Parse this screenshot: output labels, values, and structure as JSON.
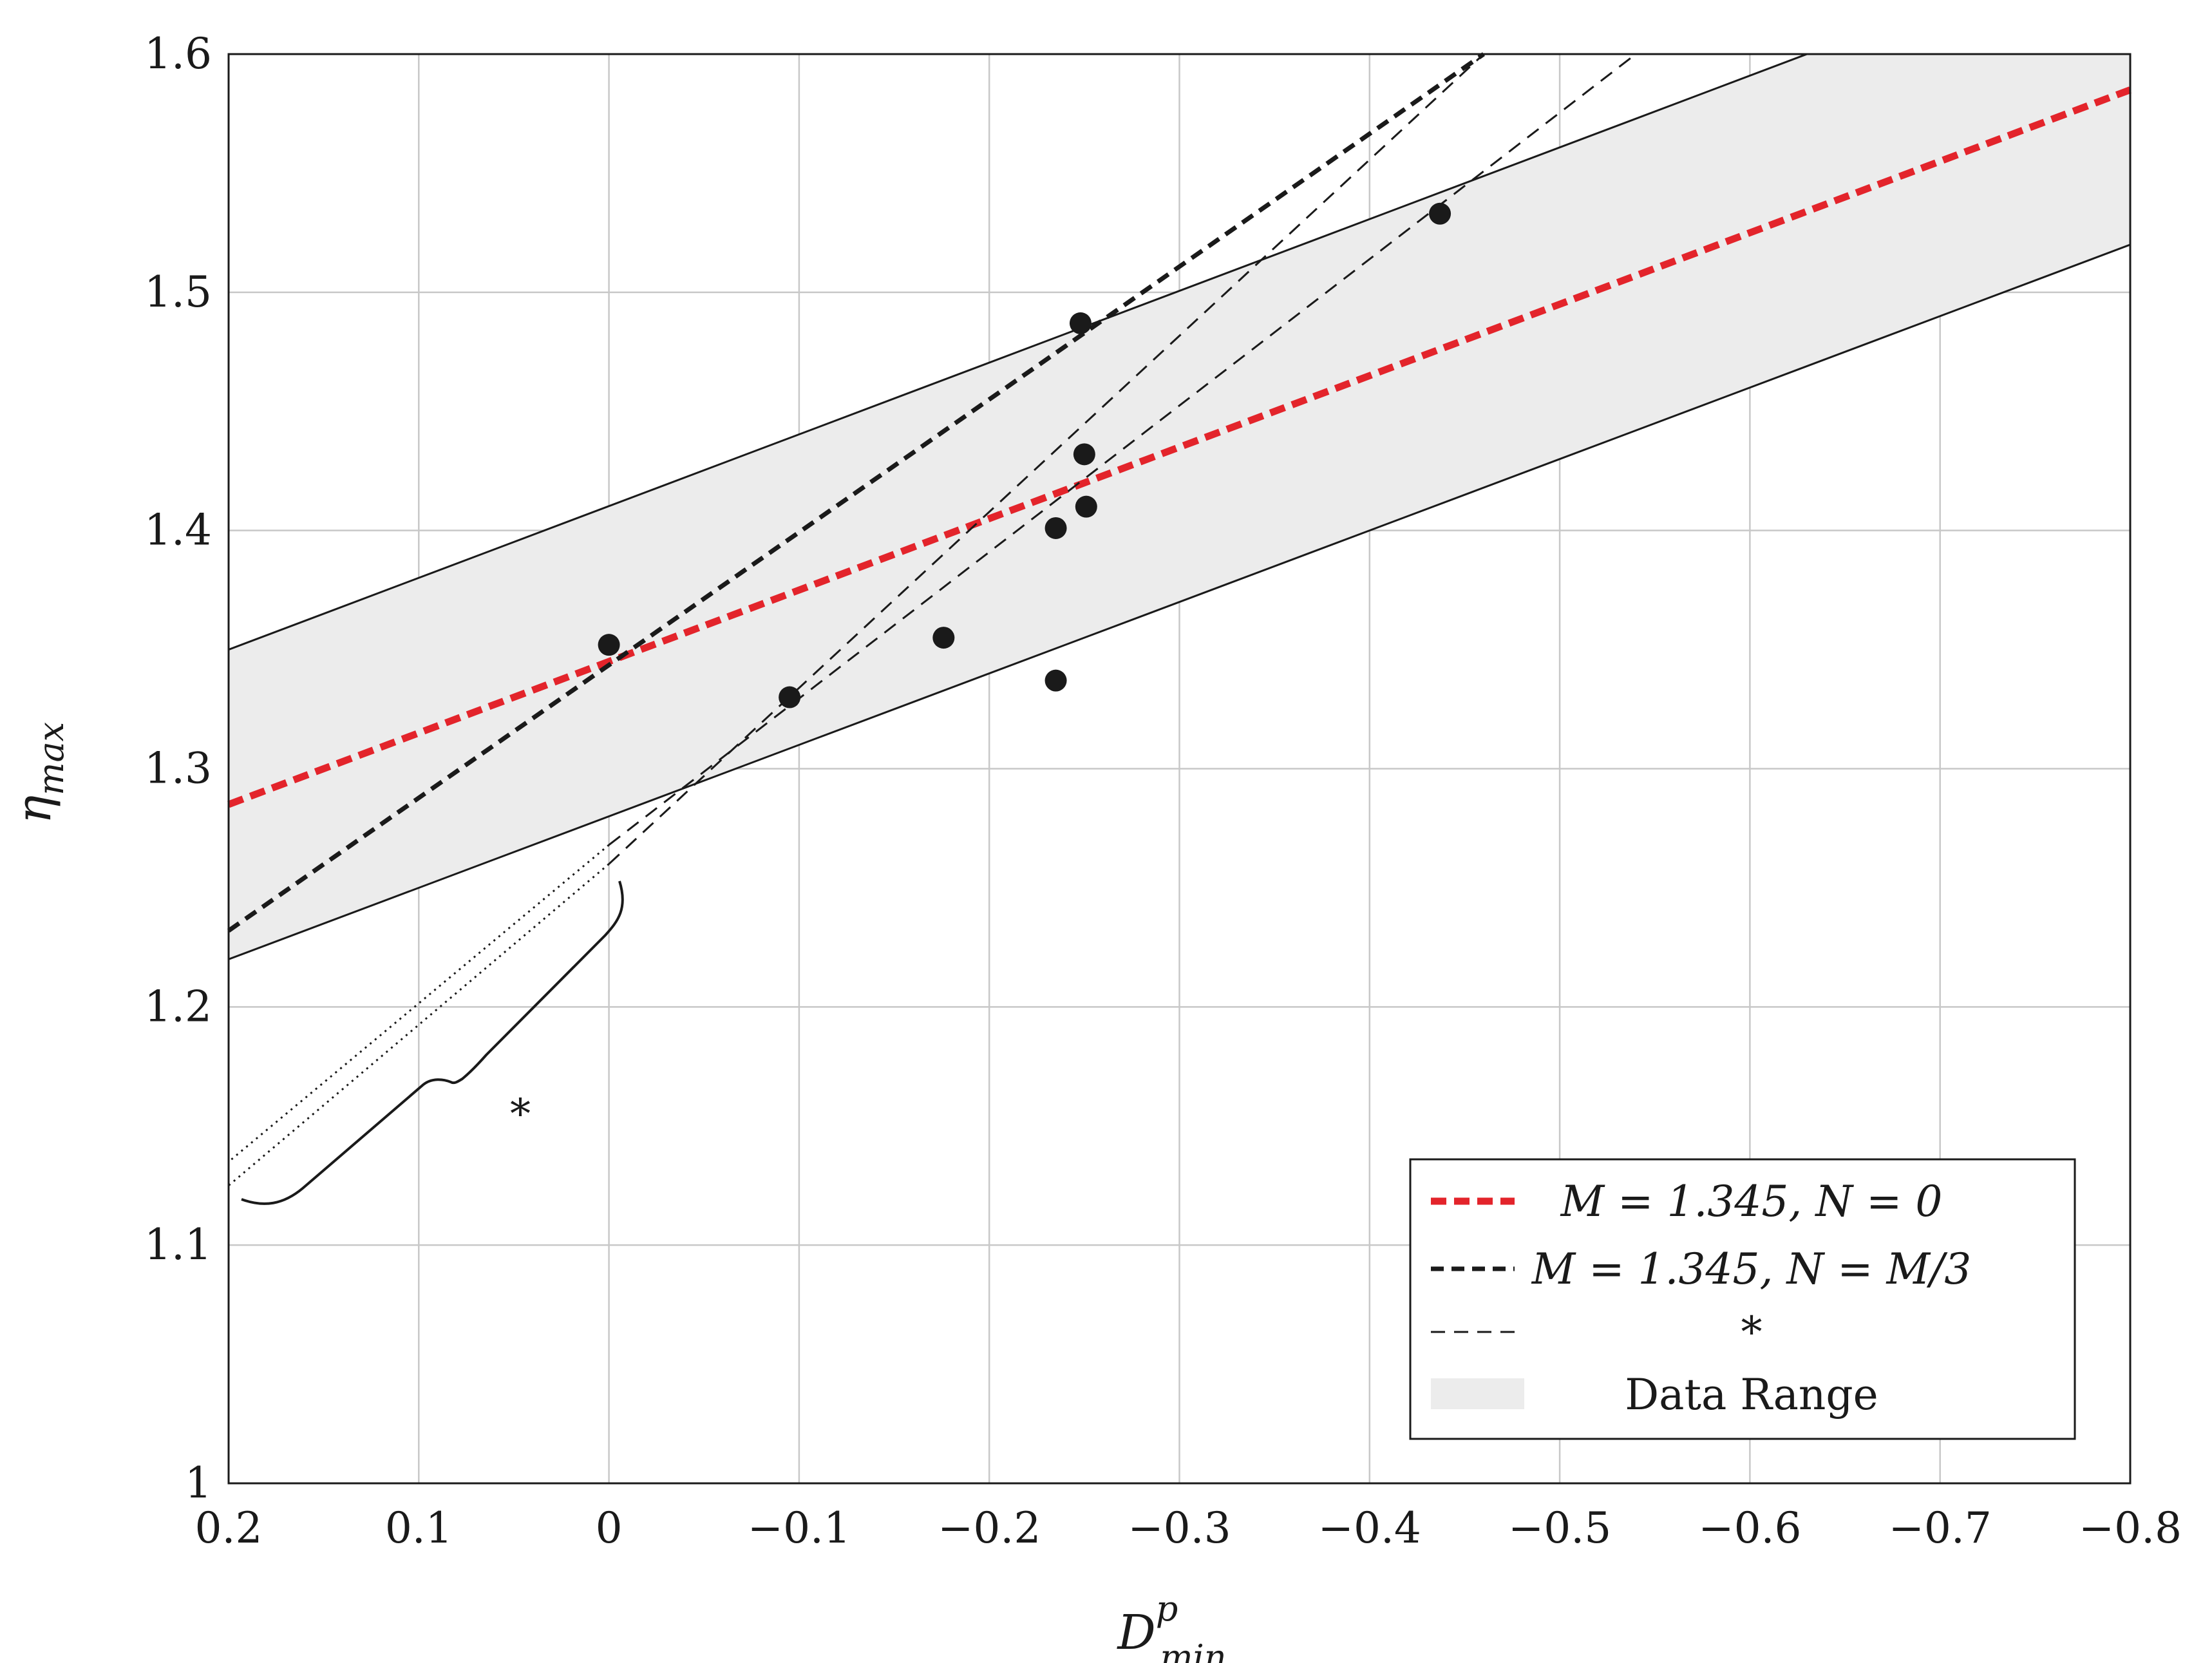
{
  "chart_data": {
    "type": "scatter",
    "title": "",
    "xlabel": {
      "main": "D",
      "sup": "p",
      "sub": "min"
    },
    "ylabel": {
      "main": "η",
      "sub": "max"
    },
    "xlim": [
      0.2,
      -0.8
    ],
    "ylim": [
      1.0,
      1.6
    ],
    "x_ticks": [
      0.2,
      0.1,
      0,
      -0.1,
      -0.2,
      -0.3,
      -0.4,
      -0.5,
      -0.6,
      -0.7,
      -0.8
    ],
    "x_tick_labels": [
      "0.2",
      "0.1",
      "0",
      "−0.1",
      "−0.2",
      "−0.3",
      "−0.4",
      "−0.5",
      "−0.6",
      "−0.7",
      "−0.8"
    ],
    "y_ticks": [
      1.0,
      1.1,
      1.2,
      1.3,
      1.4,
      1.5,
      1.6
    ],
    "y_tick_labels": [
      "1",
      "1.1",
      "1.2",
      "1.3",
      "1.4",
      "1.5",
      "1.6"
    ],
    "grid": true,
    "points": [
      {
        "x": 0.0,
        "y": 1.352
      },
      {
        "x": -0.095,
        "y": 1.33
      },
      {
        "x": -0.176,
        "y": 1.355
      },
      {
        "x": -0.235,
        "y": 1.337
      },
      {
        "x": -0.235,
        "y": 1.401
      },
      {
        "x": -0.248,
        "y": 1.487
      },
      {
        "x": -0.25,
        "y": 1.432
      },
      {
        "x": -0.251,
        "y": 1.41
      },
      {
        "x": -0.437,
        "y": 1.533
      }
    ],
    "data_range": {
      "upper": [
        [
          0.2,
          1.35
        ],
        [
          -0.63,
          1.6
        ]
      ],
      "lower": [
        [
          0.2,
          1.22
        ],
        [
          -0.8,
          1.52
        ]
      ]
    },
    "fit_lines": [
      {
        "name": "M = 1.345, N = 0",
        "style": "red-dashed",
        "x0": 0.2,
        "y0": 1.285,
        "x1": -0.8,
        "y1": 1.585
      },
      {
        "name": "M = 1.345, N = M/3",
        "style": "black-dashed",
        "x0": 0.2,
        "y0": 1.232,
        "x1": -0.46,
        "y1": 1.6
      },
      {
        "name": "*",
        "style": "thin-dashed",
        "x0": 0.0,
        "y0": 1.26,
        "x1": -0.46,
        "y1": 1.6
      },
      {
        "name": "*",
        "style": "thin-dashed",
        "x0": 0.0,
        "y0": 1.268,
        "x1": -0.54,
        "y1": 1.6
      }
    ],
    "extrapolations": [
      {
        "x0": 0.0,
        "y0": 1.26,
        "x1": 0.2,
        "y1": 1.125
      },
      {
        "x0": 0.0,
        "y0": 1.268,
        "x1": 0.2,
        "y1": 1.135
      }
    ],
    "annotation": {
      "text": "*",
      "x": 0.05,
      "y": 1.16
    },
    "legend": {
      "position": "bottom-right",
      "entries": [
        {
          "label": "M = 1.345, N = 0",
          "color": "#e3242b",
          "style": "red-dashed"
        },
        {
          "label": "M = 1.345, N = M/3",
          "color": "#1a1a1a",
          "style": "black-dashed"
        },
        {
          "label": "*",
          "color": "#1a1a1a",
          "style": "thin-dashed"
        },
        {
          "label": "Data Range",
          "color": "#ececec",
          "style": "fill"
        }
      ]
    },
    "colors": {
      "red": "#e3242b",
      "black": "#1a1a1a",
      "band": "#ececec",
      "grid": "#c8c8c8"
    }
  }
}
